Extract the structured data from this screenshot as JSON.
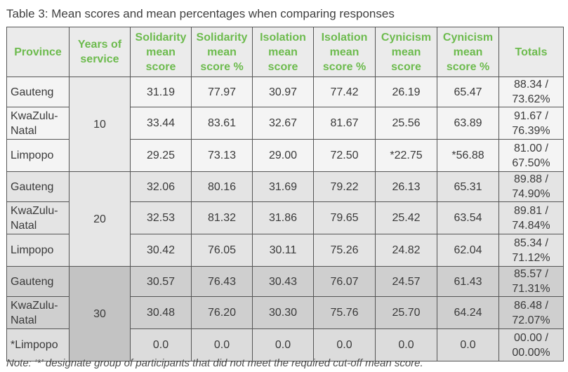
{
  "title": "Table 3: Mean scores and mean percentages when comparing responses",
  "headers": {
    "province": "Province",
    "years": "Years of service",
    "sol_mean": "Solidarity mean score",
    "sol_pct": "Solidarity mean score %",
    "iso_mean": "Isolation mean score",
    "iso_pct": "Isolation mean score %",
    "cyn_mean": "Cynicism mean score",
    "cyn_pct": "Cynicism mean score %",
    "totals": "Totals"
  },
  "groups": [
    {
      "years": "10",
      "rows": [
        {
          "province": "Gauteng",
          "sol_mean": "31.19",
          "sol_pct": "77.97",
          "iso_mean": "30.97",
          "iso_pct": "77.42",
          "cyn_mean": "26.19",
          "cyn_pct": "65.47",
          "total_a": "88.34 /",
          "total_b": "73.62%"
        },
        {
          "province": "KwaZulu-Natal",
          "sol_mean": "33.44",
          "sol_pct": "83.61",
          "iso_mean": "32.67",
          "iso_pct": "81.67",
          "cyn_mean": "25.56",
          "cyn_pct": "63.89",
          "total_a": "91.67 /",
          "total_b": "76.39%"
        },
        {
          "province": "Limpopo",
          "sol_mean": "29.25",
          "sol_pct": "73.13",
          "iso_mean": "29.00",
          "iso_pct": "72.50",
          "cyn_mean": "*22.75",
          "cyn_pct": "*56.88",
          "total_a": "81.00 /",
          "total_b": "67.50%"
        }
      ]
    },
    {
      "years": "20",
      "rows": [
        {
          "province": "Gauteng",
          "sol_mean": "32.06",
          "sol_pct": "80.16",
          "iso_mean": "31.69",
          "iso_pct": "79.22",
          "cyn_mean": "26.13",
          "cyn_pct": "65.31",
          "total_a": "89.88 /",
          "total_b": "74.90%"
        },
        {
          "province": "KwaZulu-Natal",
          "sol_mean": "32.53",
          "sol_pct": "81.32",
          "iso_mean": "31.86",
          "iso_pct": "79.65",
          "cyn_mean": "25.42",
          "cyn_pct": "63.54",
          "total_a": "89.81 /",
          "total_b": "74.84%"
        },
        {
          "province": "Limpopo",
          "sol_mean": "30.42",
          "sol_pct": "76.05",
          "iso_mean": "30.11",
          "iso_pct": "75.26",
          "cyn_mean": "24.82",
          "cyn_pct": "62.04",
          "total_a": "85.34 /",
          "total_b": "71.12%"
        }
      ]
    },
    {
      "years": "30",
      "rows": [
        {
          "province": "Gauteng",
          "sol_mean": "30.57",
          "sol_pct": "76.43",
          "iso_mean": "30.43",
          "iso_pct": "76.07",
          "cyn_mean": "24.57",
          "cyn_pct": "61.43",
          "total_a": "85.57 /",
          "total_b": "71.31%"
        },
        {
          "province": "KwaZulu-Natal",
          "sol_mean": "30.48",
          "sol_pct": "76.20",
          "iso_mean": "30.30",
          "iso_pct": "75.76",
          "cyn_mean": "25.70",
          "cyn_pct": "64.24",
          "total_a": "86.48 /",
          "total_b": "72.07%"
        },
        {
          "province": "*Limpopo",
          "sol_mean": "0.0",
          "sol_pct": "0.0",
          "iso_mean": "0.0",
          "iso_pct": "0.0",
          "cyn_mean": "0.0",
          "cyn_pct": "0.0",
          "total_a": "00.00 /",
          "total_b": "00.00%"
        }
      ]
    }
  ],
  "note": "Note: ‘*’ designate group of participants that did not meet the required cut-off mean score.",
  "colors": {
    "header_text": "#6dbb4e",
    "header_bg": "#ebebeb",
    "group_10_bg": "#f4f4f4",
    "group_20_bg": "#e4e4e4",
    "group_30_bg": "#cfcfcf"
  }
}
